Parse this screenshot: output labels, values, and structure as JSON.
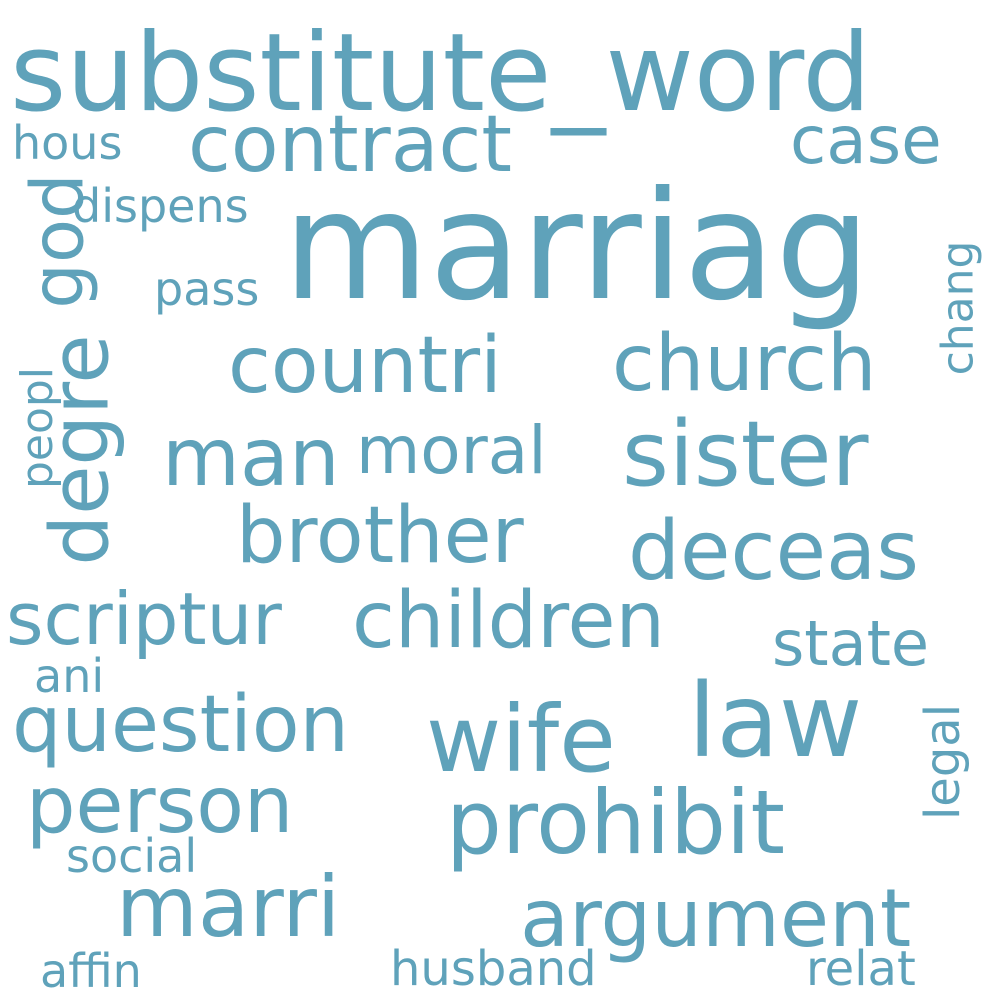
{
  "word_cloud": {
    "color": "#5fa2ba",
    "background": "#ffffff",
    "words": {
      "substitute_word": "substitute_word",
      "marriag": "marriag",
      "contract": "contract",
      "case": "case",
      "hous": "hous",
      "dispens": "dispens",
      "god": "god",
      "pass": "pass",
      "chang": "chang",
      "countri": "countri",
      "church": "church",
      "degre": "degre",
      "peopl": "peopl",
      "man": "man",
      "moral": "moral",
      "sister": "sister",
      "brother": "brother",
      "deceas": "deceas",
      "scriptur": "scriptur",
      "children": "children",
      "state": "state",
      "ani": "ani",
      "question": "question",
      "wife": "wife",
      "law": "law",
      "legal": "legal",
      "person": "person",
      "prohibit": "prohibit",
      "social": "social",
      "marri": "marri",
      "argument": "argument",
      "affin": "affin",
      "husband": "husband",
      "relat": "relat"
    }
  }
}
